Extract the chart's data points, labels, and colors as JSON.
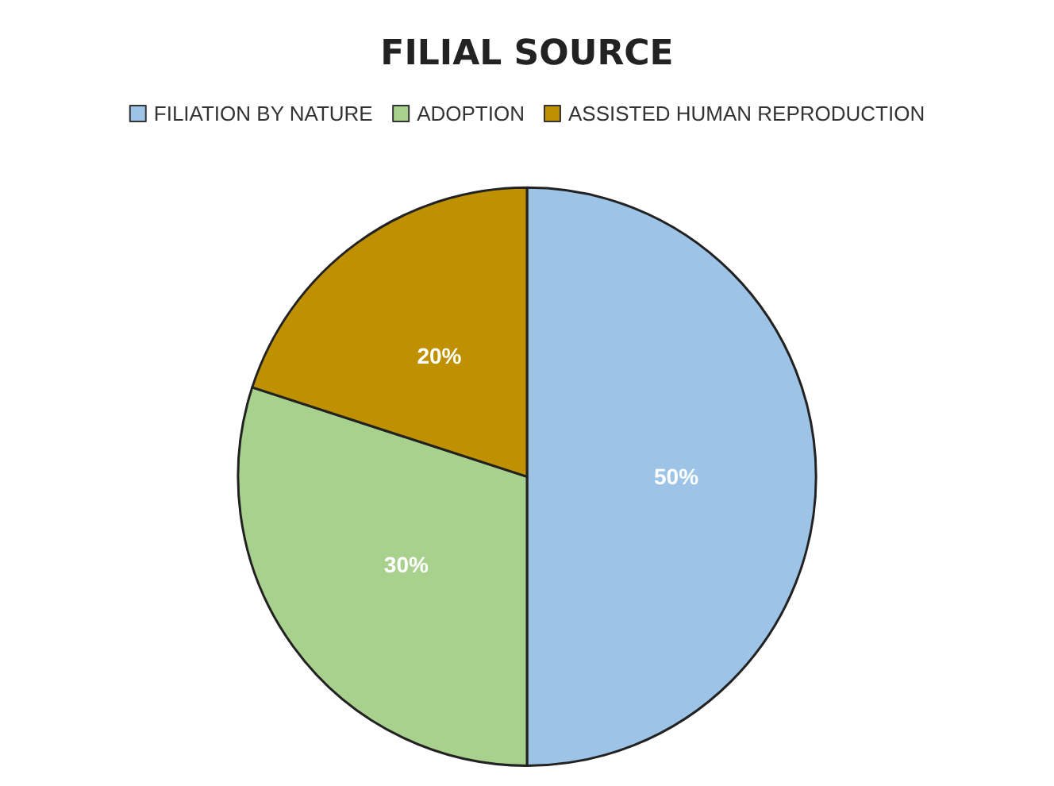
{
  "chart_data": {
    "type": "pie",
    "title": "FILIAL SOURCE",
    "categories": [
      "FILIATION BY NATURE",
      "ADOPTION",
      "ASSISTED HUMAN REPRODUCTION"
    ],
    "values": [
      50,
      30,
      20
    ],
    "colors": [
      "#9dc3e6",
      "#a9d18e",
      "#bf9000"
    ],
    "value_labels": [
      "50%",
      "30%",
      "20%"
    ],
    "legend": "top"
  }
}
